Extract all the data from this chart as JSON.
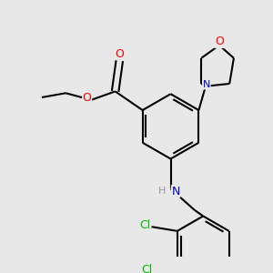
{
  "background_color": "#e8e8e8",
  "bond_color": "#000000",
  "atom_colors": {
    "O": "#ff0000",
    "N": "#0000cc",
    "Cl": "#00bb00",
    "H": "#999999",
    "C": "#000000"
  },
  "figsize": [
    3.0,
    3.0
  ],
  "dpi": 100
}
